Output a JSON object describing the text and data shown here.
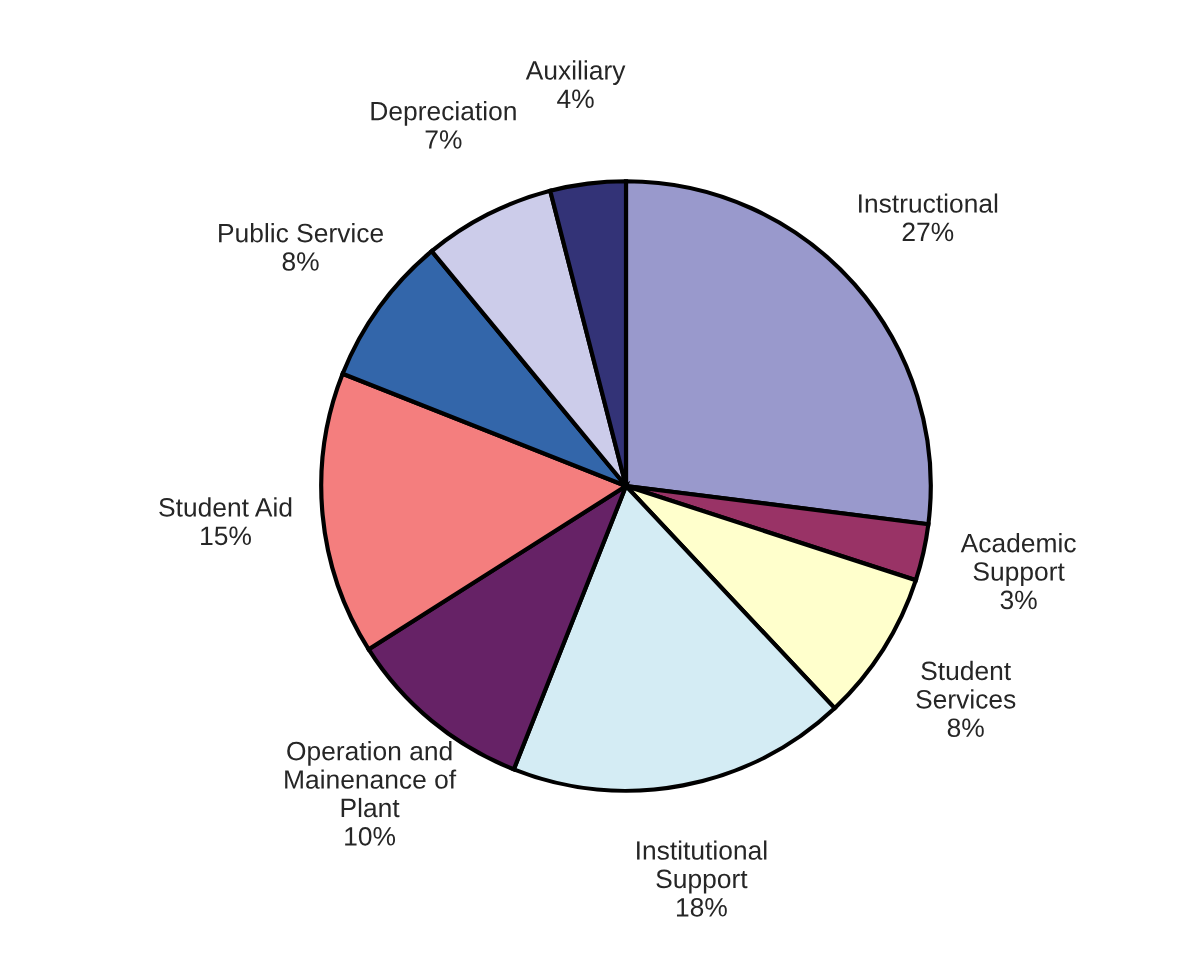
{
  "chart_data": {
    "type": "pie",
    "categories": [
      "Instructional",
      "Academic\nSupport",
      "Student\nServices",
      "Institutional\nSupport",
      "Operation and\nMainenance of\nPlant",
      "Student Aid",
      "Public Service",
      "Depreciation",
      "Auxiliary"
    ],
    "values": [
      27,
      3,
      8,
      18,
      10,
      15,
      8,
      7,
      4
    ],
    "value_labels": [
      "27%",
      "3%",
      "8%",
      "18%",
      "10%",
      "15%",
      "8%",
      "7%",
      "4%"
    ],
    "colors": [
      "#9999cc",
      "#993366",
      "#ffffcc",
      "#d4ecf4",
      "#662266",
      "#f47e7e",
      "#3366aa",
      "#ccccea",
      "#333377"
    ]
  }
}
